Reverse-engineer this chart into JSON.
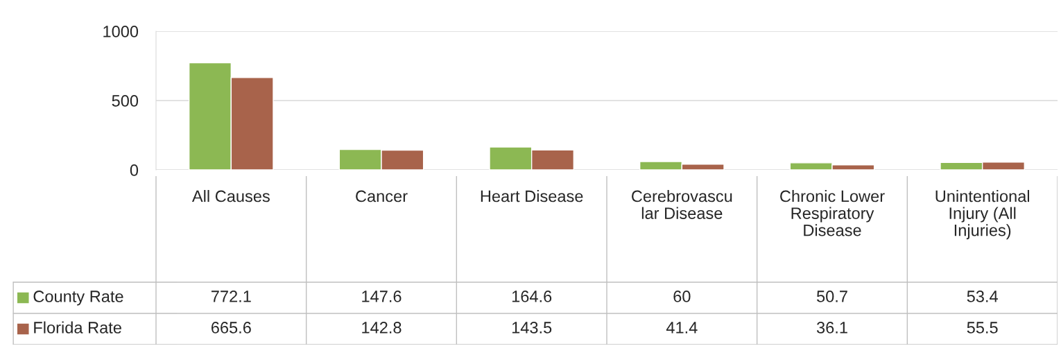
{
  "chart_data": {
    "type": "bar",
    "categories": [
      "All Causes",
      "Cancer",
      "Heart Disease",
      "Cerebrovascular Disease",
      "Chronic Lower Respiratory Disease",
      "Unintentional Injury (All Injuries)"
    ],
    "series": [
      {
        "name": "County Rate",
        "color": "#8cb853",
        "values": [
          772.1,
          147.6,
          164.6,
          60,
          50.7,
          53.4
        ]
      },
      {
        "name": "Florida Rate",
        "color": "#a8634b",
        "values": [
          665.6,
          142.8,
          143.5,
          41.4,
          36.1,
          55.5
        ]
      }
    ],
    "ylim": [
      0,
      1000
    ],
    "yticks": [
      0,
      500,
      1000
    ],
    "grid": "y",
    "legend": "bottom",
    "data_labels": true
  }
}
